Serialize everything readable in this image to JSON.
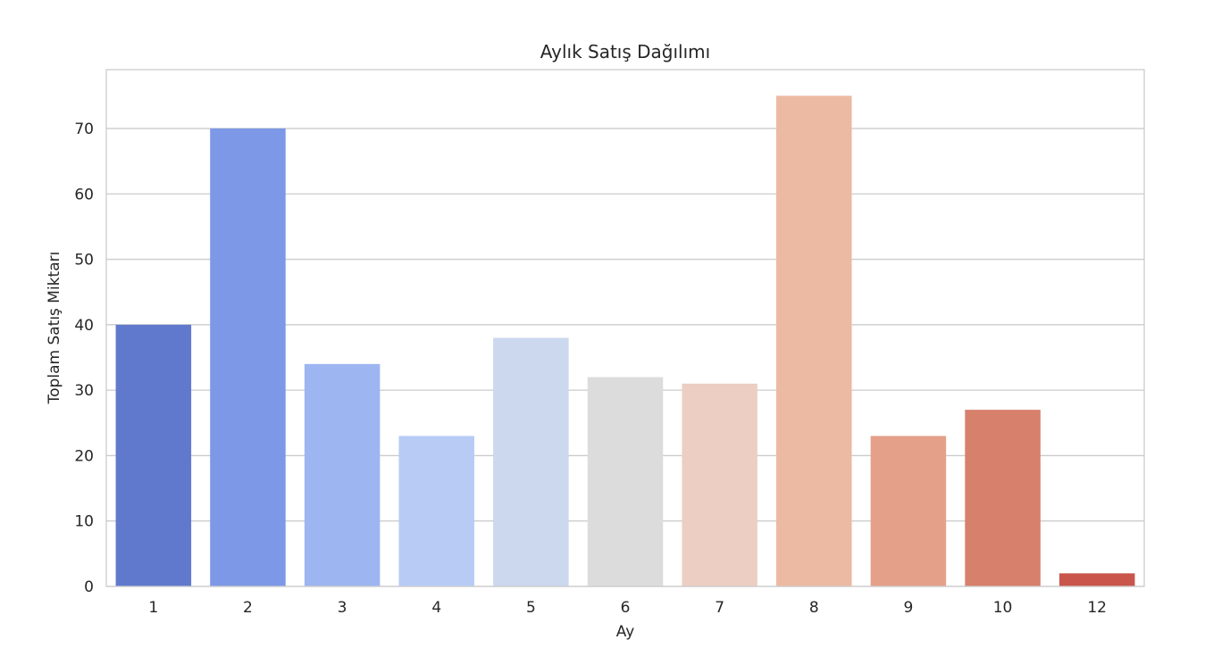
{
  "chart_data": {
    "type": "bar",
    "title": "Aylık Satış Dağılımı",
    "xlabel": "Ay",
    "ylabel": "Toplam Satış Miktarı",
    "categories": [
      "1",
      "2",
      "3",
      "4",
      "5",
      "6",
      "7",
      "8",
      "9",
      "10",
      "12"
    ],
    "values": [
      40,
      70,
      34,
      23,
      38,
      32,
      31,
      75,
      23,
      27,
      2
    ],
    "colors": [
      "#6179cd",
      "#7d98e6",
      "#9db5f1",
      "#b7cbf5",
      "#cbd8ee",
      "#dcdcdc",
      "#eccfc2",
      "#ecbaa2",
      "#e5a08a",
      "#d7806b",
      "#c9554b"
    ],
    "yticks": [
      0,
      10,
      20,
      30,
      40,
      50,
      60,
      70
    ],
    "ylim": [
      0,
      79
    ],
    "grid": true,
    "grid_axis": "y"
  }
}
